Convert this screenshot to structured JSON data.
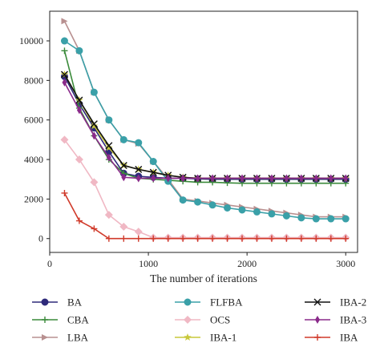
{
  "chart_data": {
    "type": "line",
    "title": "",
    "xlabel": "The number of iterations",
    "ylabel": "",
    "xlim": [
      0,
      3120
    ],
    "ylim": [
      -700,
      11500
    ],
    "xticks": [
      0,
      1000,
      2000,
      3000
    ],
    "yticks": [
      0,
      2000,
      4000,
      6000,
      8000,
      10000
    ],
    "x": [
      150,
      300,
      450,
      600,
      750,
      900,
      1050,
      1200,
      1350,
      1500,
      1650,
      1800,
      1950,
      2100,
      2250,
      2400,
      2550,
      2700,
      2850,
      3000
    ],
    "grid": false,
    "legend_position": "bottom",
    "series": [
      {
        "name": "BA",
        "color": "#2e2a7a",
        "marker": "circle",
        "values": [
          8200,
          6800,
          5600,
          4400,
          3300,
          3150,
          3100,
          3050,
          3050,
          3020,
          3000,
          3000,
          3000,
          3000,
          3000,
          3000,
          3000,
          3000,
          3000,
          3000
        ]
      },
      {
        "name": "CBA",
        "color": "#3a8a3a",
        "marker": "plus",
        "values": [
          9500,
          6600,
          5200,
          4000,
          3300,
          3050,
          3000,
          2950,
          2900,
          2850,
          2850,
          2820,
          2800,
          2800,
          2800,
          2800,
          2800,
          2800,
          2800,
          2800
        ]
      },
      {
        "name": "LBA",
        "color": "#b89090",
        "marker": "triangle-right",
        "values": [
          11000,
          9500,
          7400,
          6000,
          5000,
          4800,
          3900,
          3000,
          2000,
          1900,
          1800,
          1700,
          1600,
          1500,
          1400,
          1300,
          1200,
          1100,
          1100,
          1100
        ]
      },
      {
        "name": "FLFBA",
        "color": "#3aa0a8",
        "marker": "circle",
        "values": [
          10000,
          9500,
          7400,
          6000,
          5000,
          4850,
          3900,
          2900,
          1950,
          1850,
          1700,
          1550,
          1450,
          1350,
          1250,
          1150,
          1050,
          1000,
          1000,
          1000
        ]
      },
      {
        "name": "OCS",
        "color": "#f0b8c4",
        "marker": "diamond",
        "values": [
          5000,
          4000,
          2850,
          1200,
          600,
          350,
          50,
          50,
          50,
          50,
          50,
          50,
          50,
          50,
          50,
          50,
          50,
          50,
          50,
          50
        ]
      },
      {
        "name": "IBA-1",
        "color": "#c8c83a",
        "marker": "star",
        "values": [
          8300,
          7000,
          5700,
          4600,
          3700,
          3500,
          3350,
          3200,
          3100,
          3050,
          3050,
          3050,
          3050,
          3050,
          3050,
          3050,
          3050,
          3050,
          3050,
          3050
        ]
      },
      {
        "name": "IBA-2",
        "color": "#111111",
        "marker": "x",
        "values": [
          8300,
          7000,
          5800,
          4700,
          3700,
          3500,
          3350,
          3200,
          3100,
          3050,
          3050,
          3050,
          3050,
          3050,
          3050,
          3050,
          3050,
          3050,
          3050,
          3050
        ]
      },
      {
        "name": "IBA-3",
        "color": "#8a2a8a",
        "marker": "thin-diamond",
        "values": [
          7900,
          6500,
          5200,
          4100,
          3100,
          3050,
          3050,
          3050,
          3050,
          3050,
          3050,
          3050,
          3050,
          3050,
          3050,
          3050,
          3050,
          3050,
          3050,
          3050
        ]
      },
      {
        "name": "IBA",
        "color": "#d03a2a",
        "marker": "plus",
        "values": [
          2300,
          900,
          500,
          0,
          0,
          0,
          0,
          0,
          0,
          0,
          0,
          0,
          0,
          0,
          0,
          0,
          0,
          0,
          0,
          0
        ]
      }
    ]
  }
}
